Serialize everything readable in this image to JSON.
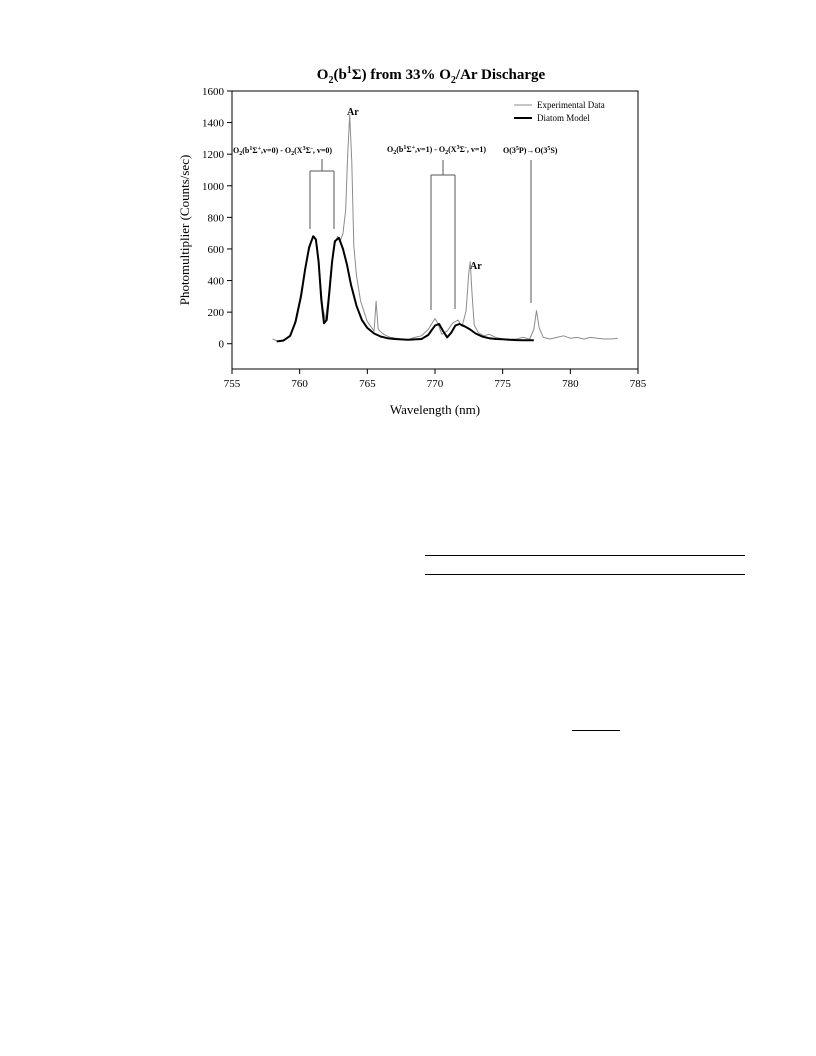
{
  "chart_data": {
    "type": "line",
    "title": {
      "main": "O",
      "sub1": "2",
      "p1": "(b",
      "sup1": "1",
      "p2": "Σ) from 33% O",
      "sub2": "2",
      "p3": "/Ar Discharge"
    },
    "xlabel": "Wavelength (nm)",
    "ylabel": "Photomultiplier (Counts/sec)",
    "xlim": [
      755,
      785
    ],
    "ylim": [
      -160,
      1600
    ],
    "xticks": [
      "755",
      "760",
      "765",
      "770",
      "775",
      "780",
      "785"
    ],
    "yticks": [
      "0",
      "200",
      "400",
      "600",
      "800",
      "1000",
      "1200",
      "1400",
      "1600"
    ],
    "legend": {
      "placement": "top-right",
      "entries": [
        "Experimental Data",
        "Diatom Model"
      ]
    },
    "annotations": {
      "ar1": "Ar",
      "ar2": "Ar",
      "band0": {
        "t1": "O",
        "s1": "2",
        "t2": "(b",
        "u1": "1",
        "t3": "Σ",
        "u2": "+",
        "t4": ",v=0) - O",
        "s2": "2",
        "t5": "(X",
        "u3": "3",
        "t6": "Σ",
        "u4": "-",
        "t7": ", v=0)"
      },
      "band1": {
        "t1": "O",
        "s1": "2",
        "t2": "(b",
        "u1": "1",
        "t3": "Σ",
        "u2": "+",
        "t4": ",v=1) - O",
        "s2": "2",
        "t5": "(X",
        "u3": "3",
        "t6": "Σ",
        "u4": "-",
        "t7": ", v=1)"
      },
      "oline": {
        "t1": "O(3",
        "u1": "5",
        "t2": "P)→O(3",
        "u2": "5",
        "t3": "S)"
      }
    },
    "series": [
      {
        "name": "Experimental Data",
        "color": "#8c8c8c",
        "x": [
          758.0,
          758.4,
          758.8,
          759.2,
          759.6,
          760.0,
          760.3,
          760.6,
          760.9,
          761.1,
          761.3,
          761.5,
          761.7,
          761.9,
          762.1,
          762.3,
          762.5,
          762.8,
          763.0,
          763.2,
          763.4,
          763.55,
          763.7,
          763.85,
          764.0,
          764.2,
          764.5,
          765.0,
          765.5,
          765.65,
          765.8,
          766.2,
          766.7,
          767.5,
          768.0,
          768.5,
          769.0,
          769.5,
          770.0,
          770.2,
          770.5,
          770.9,
          771.3,
          771.7,
          772.0,
          772.3,
          772.5,
          772.6,
          772.75,
          772.9,
          773.2,
          773.6,
          774.0,
          774.5,
          775.0,
          775.5,
          776.0,
          776.5,
          777.0,
          777.3,
          777.5,
          777.7,
          778.0,
          778.5,
          779.0,
          779.5,
          780.0,
          780.5,
          781.0,
          781.5,
          782.0,
          782.5,
          783.0,
          783.5
        ],
        "y": [
          30,
          15,
          25,
          40,
          120,
          280,
          420,
          560,
          660,
          680,
          610,
          420,
          230,
          150,
          280,
          460,
          610,
          680,
          650,
          700,
          850,
          1200,
          1450,
          1150,
          620,
          430,
          270,
          140,
          80,
          270,
          90,
          60,
          40,
          30,
          25,
          40,
          50,
          90,
          160,
          130,
          60,
          80,
          130,
          150,
          110,
          210,
          450,
          520,
          300,
          120,
          70,
          50,
          60,
          40,
          30,
          30,
          30,
          40,
          30,
          90,
          210,
          100,
          40,
          30,
          40,
          50,
          35,
          40,
          30,
          40,
          35,
          30,
          30,
          35
        ]
      },
      {
        "name": "Diatom Model",
        "color": "#000000",
        "x": [
          758.3,
          758.8,
          759.3,
          759.7,
          760.1,
          760.4,
          760.7,
          761.0,
          761.2,
          761.4,
          761.6,
          761.8,
          762.0,
          762.2,
          762.4,
          762.6,
          762.9,
          763.2,
          763.5,
          763.8,
          764.2,
          764.6,
          765.0,
          765.5,
          766.0,
          766.5,
          767.0,
          768.0,
          769.0,
          769.5,
          770.0,
          770.3,
          770.6,
          770.9,
          771.2,
          771.5,
          771.8,
          772.2,
          772.6,
          773.0,
          773.5,
          774.0,
          774.5,
          775.0,
          775.5,
          776.0,
          776.5,
          777.0,
          777.3
        ],
        "y": [
          15,
          20,
          50,
          140,
          300,
          470,
          610,
          680,
          660,
          520,
          280,
          130,
          150,
          330,
          520,
          650,
          670,
          600,
          500,
          370,
          240,
          150,
          100,
          65,
          45,
          35,
          30,
          25,
          30,
          55,
          115,
          125,
          80,
          40,
          70,
          115,
          125,
          110,
          90,
          65,
          45,
          35,
          30,
          28,
          25,
          23,
          22,
          22,
          22
        ]
      }
    ]
  }
}
